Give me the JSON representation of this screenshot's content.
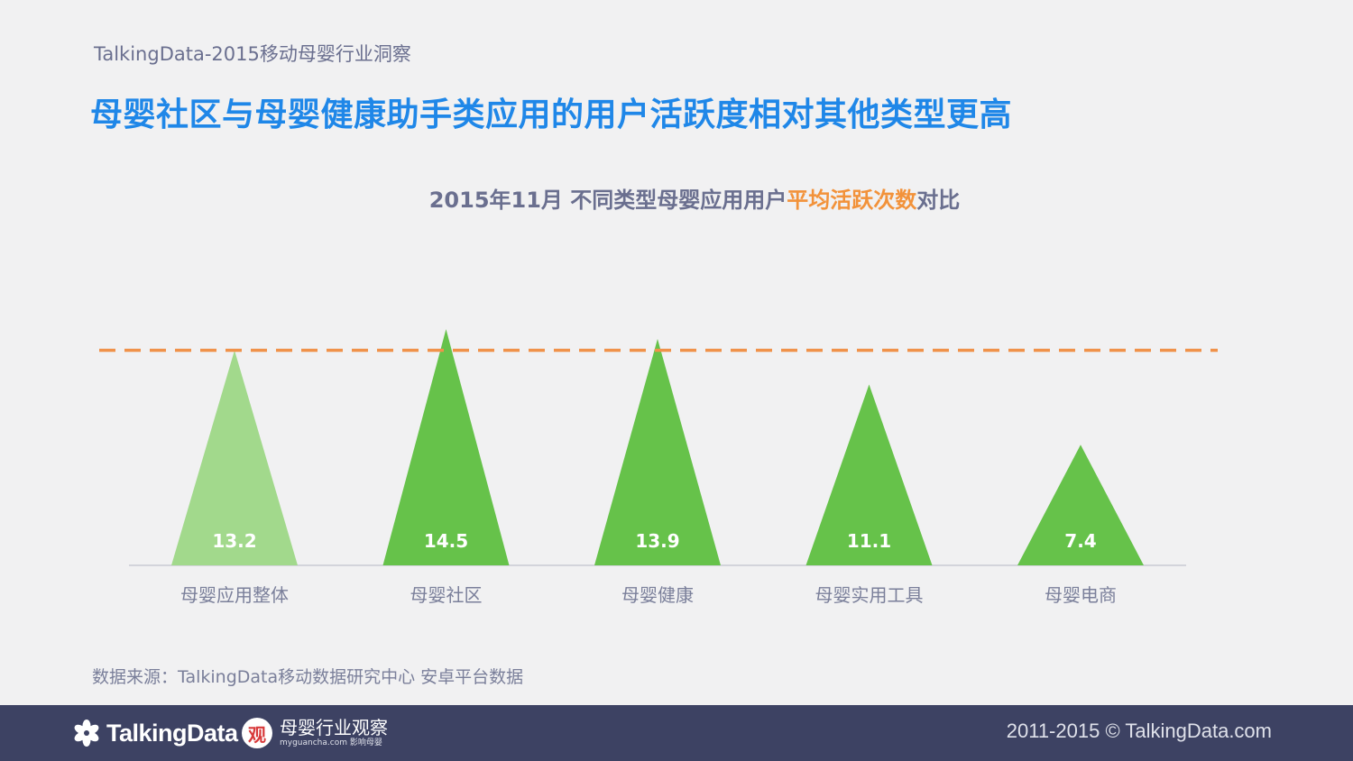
{
  "header": {
    "report_title": "TalkingData-2015移动母婴行业洞察",
    "headline": "母婴社区与母婴健康助手类应用的用户活跃度相对其他类型更高"
  },
  "chart_title": {
    "part1": "2015年11月 不同类型母婴应用用户",
    "highlight": "平均活跃次数",
    "part2": "对比"
  },
  "chart_data": {
    "type": "bar",
    "title": "2015年11月 不同类型母婴应用用户平均活跃次数对比",
    "categories": [
      "母婴应用整体",
      "母婴社区",
      "母婴健康",
      "母婴实用工具",
      "母婴电商"
    ],
    "values": [
      13.2,
      14.5,
      13.9,
      11.1,
      7.4
    ],
    "reference_line": 13.2,
    "ylim": [
      0,
      15
    ],
    "mark_shape": "triangle",
    "colors": {
      "overall": "#a2d98c",
      "segment": "#66c24a",
      "reference": "#f0924a",
      "axis": "#c9cbd3",
      "label_text": "#ffffff",
      "category_text": "#7a7f9a"
    }
  },
  "source_note": "数据来源：TalkingData移动数据研究中心 安卓平台数据",
  "footer": {
    "brand": "TalkingData",
    "partner_name": "母婴行业观察",
    "partner_badge": "观",
    "partner_sub": "myguancha.com 影响母婴",
    "copyright": "2011-2015 © TalkingData.com"
  }
}
